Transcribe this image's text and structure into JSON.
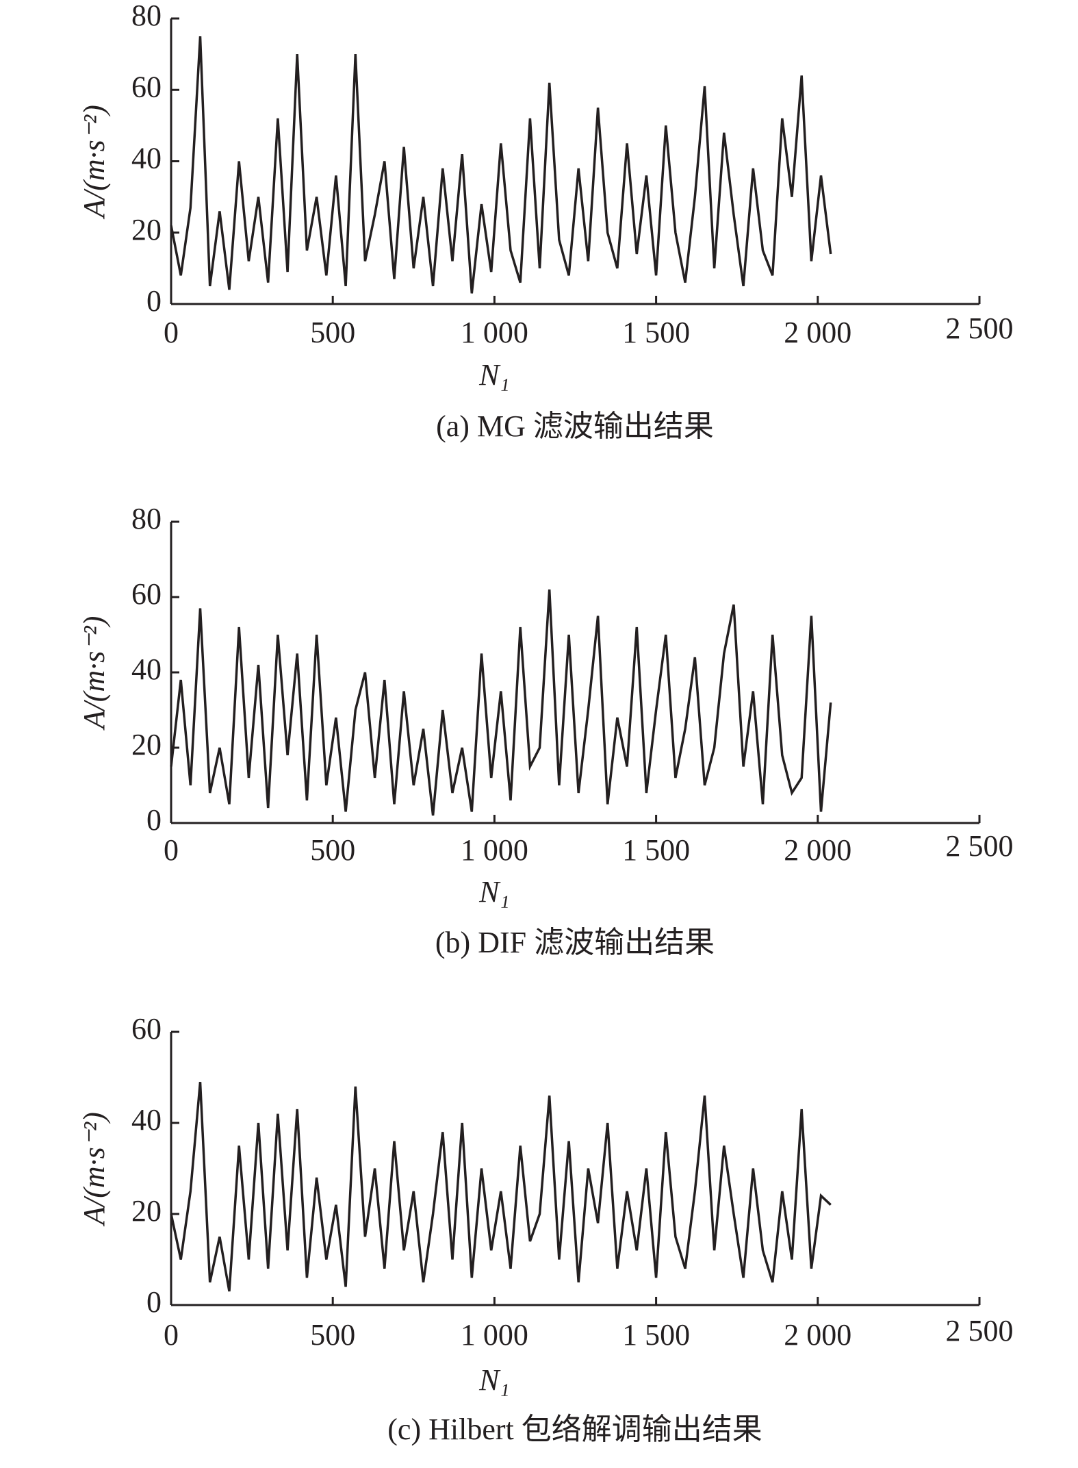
{
  "chart_data": [
    {
      "type": "line",
      "caption": "(a) MG 滤波输出结果",
      "x_label": "N₁",
      "y_label": "A/(m·s⁻²)",
      "xlim": [
        0,
        2500
      ],
      "xticks": [
        0,
        500,
        {
          "value": 1000,
          "label": "1 000"
        },
        {
          "value": 1500,
          "label": "1 500"
        },
        {
          "value": 2000,
          "label": "2 000"
        },
        {
          "value": 2500,
          "label": "2 500"
        }
      ],
      "ylim": [
        0,
        80
      ],
      "yticks": [
        0,
        20,
        40,
        60,
        80
      ],
      "x": [
        0,
        30,
        60,
        90,
        120,
        150,
        180,
        210,
        240,
        270,
        300,
        330,
        360,
        390,
        420,
        450,
        480,
        510,
        540,
        570,
        600,
        630,
        660,
        690,
        720,
        750,
        780,
        810,
        840,
        870,
        900,
        930,
        960,
        990,
        1020,
        1050,
        1080,
        1110,
        1140,
        1170,
        1200,
        1230,
        1260,
        1290,
        1320,
        1350,
        1380,
        1410,
        1440,
        1470,
        1500,
        1530,
        1560,
        1590,
        1620,
        1650,
        1680,
        1710,
        1740,
        1770,
        1800,
        1830,
        1860,
        1890,
        1920,
        1950,
        1980,
        2010,
        2040
      ],
      "series": [
        {
          "color": "#231f20",
          "values": [
            22,
            8,
            27,
            75,
            5,
            26,
            4,
            40,
            12,
            30,
            6,
            52,
            9,
            70,
            15,
            30,
            8,
            36,
            5,
            70,
            12,
            25,
            40,
            7,
            44,
            10,
            30,
            5,
            38,
            12,
            42,
            3,
            28,
            9,
            45,
            15,
            6,
            52,
            10,
            62,
            18,
            8,
            38,
            12,
            55,
            20,
            10,
            45,
            14,
            36,
            8,
            50,
            20,
            6,
            30,
            61,
            10,
            48,
            25,
            5,
            38,
            15,
            8,
            52,
            30,
            64,
            12,
            36,
            14
          ]
        }
      ]
    },
    {
      "type": "line",
      "caption": "(b) DIF 滤波输出结果",
      "x_label": "N₁",
      "y_label": "A/(m·s⁻²)",
      "xlim": [
        0,
        2500
      ],
      "xticks": [
        0,
        500,
        {
          "value": 1000,
          "label": "1 000"
        },
        {
          "value": 1500,
          "label": "1 500"
        },
        {
          "value": 2000,
          "label": "2 000"
        },
        {
          "value": 2500,
          "label": "2 500"
        }
      ],
      "ylim": [
        0,
        80
      ],
      "yticks": [
        0,
        20,
        40,
        60,
        80
      ],
      "x": [
        0,
        30,
        60,
        90,
        120,
        150,
        180,
        210,
        240,
        270,
        300,
        330,
        360,
        390,
        420,
        450,
        480,
        510,
        540,
        570,
        600,
        630,
        660,
        690,
        720,
        750,
        780,
        810,
        840,
        870,
        900,
        930,
        960,
        990,
        1020,
        1050,
        1080,
        1110,
        1140,
        1170,
        1200,
        1230,
        1260,
        1290,
        1320,
        1350,
        1380,
        1410,
        1440,
        1470,
        1500,
        1530,
        1560,
        1590,
        1620,
        1650,
        1680,
        1710,
        1740,
        1770,
        1800,
        1830,
        1860,
        1890,
        1920,
        1950,
        1980,
        2010,
        2040
      ],
      "series": [
        {
          "color": "#231f20",
          "values": [
            15,
            38,
            10,
            57,
            8,
            20,
            5,
            52,
            12,
            42,
            4,
            50,
            18,
            45,
            6,
            50,
            10,
            28,
            3,
            30,
            40,
            12,
            38,
            5,
            35,
            10,
            25,
            2,
            30,
            8,
            20,
            3,
            45,
            12,
            35,
            6,
            52,
            15,
            20,
            62,
            10,
            50,
            8,
            30,
            55,
            5,
            28,
            15,
            52,
            8,
            30,
            50,
            12,
            25,
            44,
            10,
            20,
            45,
            58,
            15,
            35,
            5,
            50,
            18,
            8,
            12,
            55,
            3,
            32
          ]
        }
      ]
    },
    {
      "type": "line",
      "caption": "(c) Hilbert 包络解调输出结果",
      "x_label": "N₁",
      "y_label": "A/(m·s⁻²)",
      "xlim": [
        0,
        2500
      ],
      "xticks": [
        0,
        500,
        {
          "value": 1000,
          "label": "1 000"
        },
        {
          "value": 1500,
          "label": "1 500"
        },
        {
          "value": 2000,
          "label": "2 000"
        },
        {
          "value": 2500,
          "label": "2 500"
        }
      ],
      "ylim": [
        0,
        60
      ],
      "yticks": [
        0,
        20,
        40,
        60
      ],
      "x": [
        0,
        30,
        60,
        90,
        120,
        150,
        180,
        210,
        240,
        270,
        300,
        330,
        360,
        390,
        420,
        450,
        480,
        510,
        540,
        570,
        600,
        630,
        660,
        690,
        720,
        750,
        780,
        810,
        840,
        870,
        900,
        930,
        960,
        990,
        1020,
        1050,
        1080,
        1110,
        1140,
        1170,
        1200,
        1230,
        1260,
        1290,
        1320,
        1350,
        1380,
        1410,
        1440,
        1470,
        1500,
        1530,
        1560,
        1590,
        1620,
        1650,
        1680,
        1710,
        1740,
        1770,
        1800,
        1830,
        1860,
        1890,
        1920,
        1950,
        1980,
        2010,
        2040
      ],
      "series": [
        {
          "color": "#231f20",
          "values": [
            20,
            10,
            25,
            49,
            5,
            15,
            3,
            35,
            10,
            40,
            8,
            42,
            12,
            43,
            6,
            28,
            10,
            22,
            4,
            48,
            15,
            30,
            8,
            36,
            12,
            25,
            5,
            20,
            38,
            10,
            40,
            6,
            30,
            12,
            25,
            8,
            35,
            14,
            20,
            46,
            10,
            36,
            5,
            30,
            18,
            40,
            8,
            25,
            12,
            30,
            6,
            38,
            15,
            8,
            25,
            46,
            12,
            35,
            20,
            6,
            30,
            12,
            5,
            25,
            10,
            43,
            8,
            24,
            22
          ]
        }
      ]
    }
  ]
}
